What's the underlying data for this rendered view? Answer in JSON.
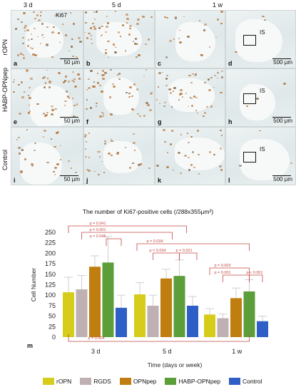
{
  "micrographs": {
    "columns": [
      "3 d",
      "5 d",
      "1 w"
    ],
    "rows": [
      "rOPN",
      "HABP-OPNpep",
      "Control"
    ],
    "stain": "Ki67",
    "panel_labels": [
      "a",
      "b",
      "c",
      "d",
      "e",
      "f",
      "g",
      "h",
      "i",
      "j",
      "k",
      "l"
    ],
    "scale_small": "50 μm",
    "scale_large": "500 μm",
    "is_label": "IS"
  },
  "chart_title": "The number of Ki67-positive cells (/288x355μm²)",
  "panel_m_label": "m",
  "chart_data": {
    "type": "bar",
    "categories": [
      "3 d",
      "5 d",
      "1 w"
    ],
    "xlabel": "Time (days or week)",
    "ylabel": "Cell Number",
    "ylim": [
      0,
      250
    ],
    "yticks": [
      0,
      25,
      50,
      75,
      100,
      125,
      150,
      175,
      200,
      225,
      250
    ],
    "series": [
      {
        "name": "rOPN",
        "color": "#d6cc1a",
        "values": [
          107,
          102,
          54
        ],
        "err": [
          36,
          28,
          14
        ]
      },
      {
        "name": "RGDS",
        "color": "#bfb0b3",
        "values": [
          114,
          75,
          45
        ],
        "err": [
          33,
          25,
          10
        ]
      },
      {
        "name": "OPNpep",
        "color": "#c07d10",
        "values": [
          168,
          140,
          93
        ],
        "err": [
          26,
          22,
          24
        ]
      },
      {
        "name": "HABP-OPNpep",
        "color": "#5c9e3a",
        "values": [
          178,
          146,
          109
        ],
        "err": [
          62,
          38,
          28
        ]
      },
      {
        "name": "Control",
        "color": "#2f5fc6",
        "values": [
          70,
          75,
          38
        ],
        "err": [
          30,
          22,
          12
        ]
      }
    ],
    "annotations": [
      "p = 0.041",
      "p = 0.001",
      "p = 0.045",
      "p = 0.034",
      "p = 0.034",
      "p = 0.021",
      "p = 0.003",
      "p = 0.001",
      "p < 0.001",
      "p = 0.004"
    ],
    "annotation_color": "#c24a45",
    "grid": false
  }
}
